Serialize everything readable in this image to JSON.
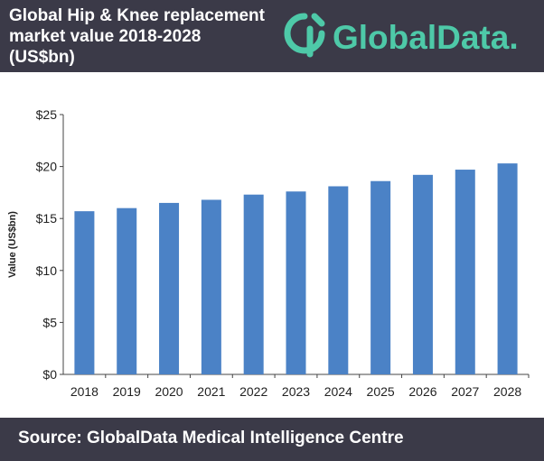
{
  "header": {
    "title_lines": [
      "Global Hip & Knee replacement",
      "market value 2018-2028",
      "(US$bn)"
    ],
    "logo_text": "GlobalData."
  },
  "footer": {
    "source": "Source: GlobalData Medical Intelligence Centre"
  },
  "colors": {
    "banner": "#3b3a48",
    "bar": "#4b82c6",
    "logo": "#4ec9a8"
  },
  "icons": {
    "logo_mark": "globaldata-logo-icon"
  },
  "chart_data": {
    "type": "bar",
    "categories": [
      "2018",
      "2019",
      "2020",
      "2021",
      "2022",
      "2023",
      "2024",
      "2025",
      "2026",
      "2027",
      "2028"
    ],
    "values": [
      15.7,
      16.0,
      16.5,
      16.8,
      17.3,
      17.6,
      18.1,
      18.6,
      19.2,
      19.7,
      20.3
    ],
    "ylabel": "Value (US$bn)",
    "ylim": [
      0,
      25
    ],
    "yticks": [
      0,
      5,
      10,
      15,
      20,
      25
    ],
    "ytick_labels": [
      "$0",
      "$5",
      "$10",
      "$15",
      "$20",
      "$25"
    ],
    "grid": false,
    "legend": "none"
  }
}
